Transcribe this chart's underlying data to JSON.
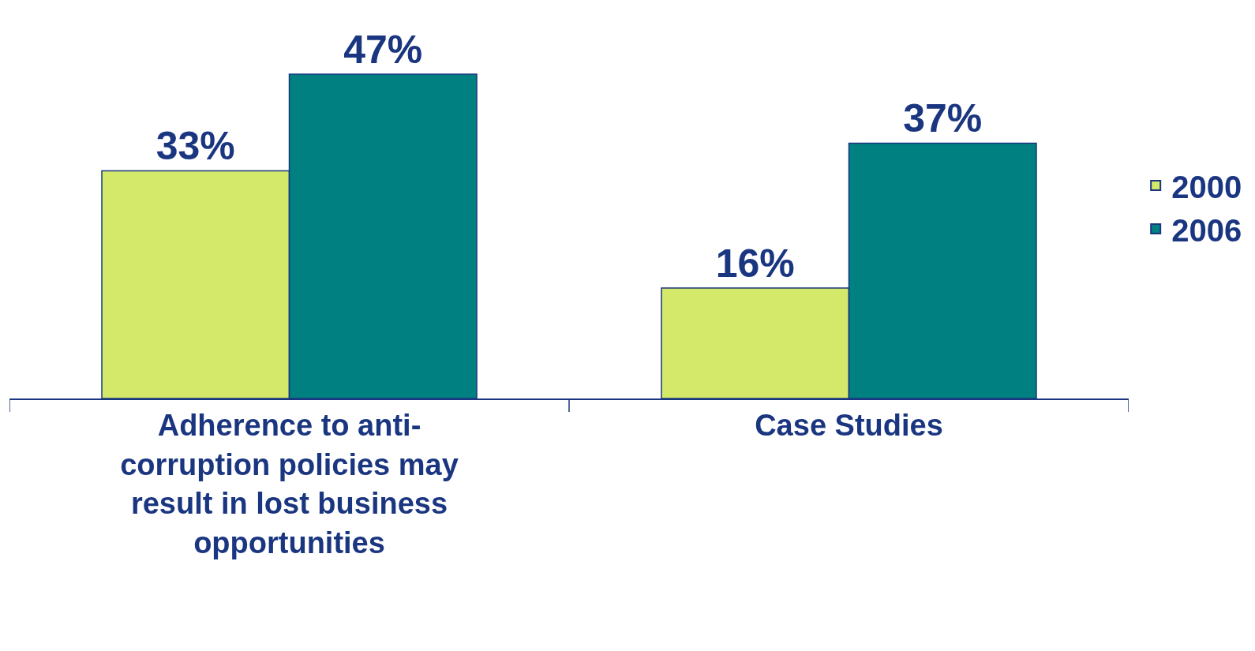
{
  "chart_data": {
    "type": "bar",
    "categories": [
      "Adherence to anti-corruption policies may result in lost business opportunities",
      "Case Studies"
    ],
    "series": [
      {
        "name": "2000",
        "color": "#d4e86a",
        "values": [
          33,
          16
        ],
        "value_labels": [
          "33%",
          "16%"
        ]
      },
      {
        "name": "2006",
        "color": "#008080",
        "values": [
          47,
          37
        ],
        "value_labels": [
          "47%",
          "37%"
        ]
      }
    ],
    "legend": "right"
  }
}
